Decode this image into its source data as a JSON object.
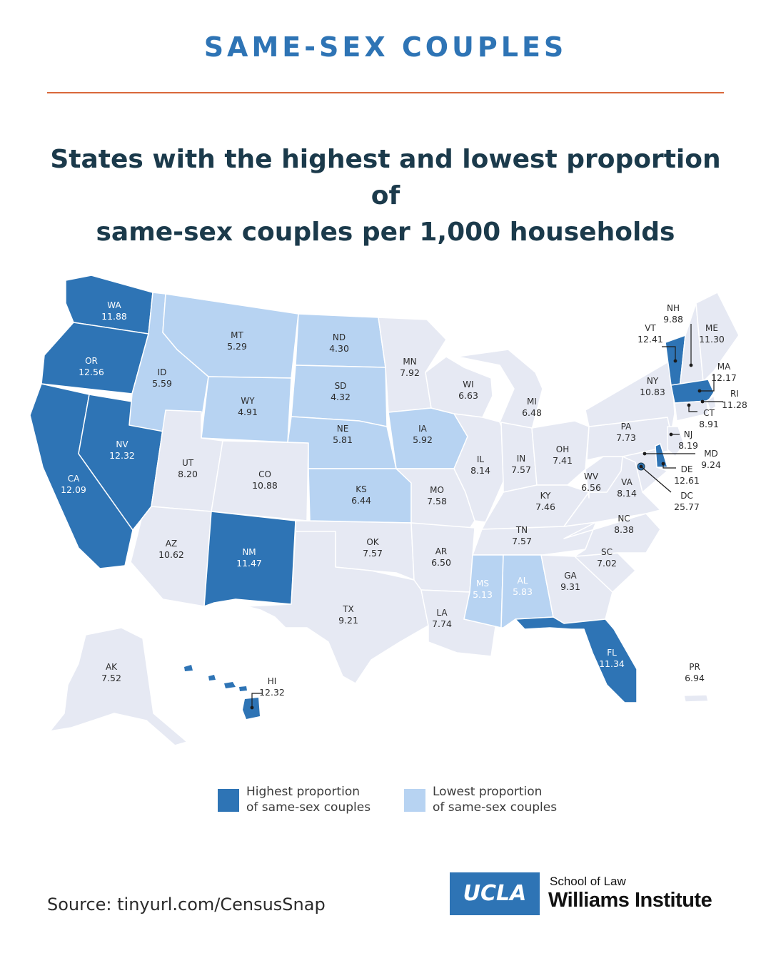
{
  "header": {
    "kicker": "SAME-SEX COUPLES",
    "title_line1": "States with the highest and lowest proportion of",
    "title_line2": "same-sex couples per 1,000 households"
  },
  "colors": {
    "high": "#2e74b5",
    "low": "#b7d3f2",
    "neutral": "#e6e9f3",
    "accent": "#d9683b",
    "label_dark": "#2b2b2b",
    "label_light": "#ffffff"
  },
  "states": [
    {
      "abbr": "WA",
      "value": "11.88",
      "cat": "high"
    },
    {
      "abbr": "OR",
      "value": "12.56",
      "cat": "high"
    },
    {
      "abbr": "CA",
      "value": "12.09",
      "cat": "high"
    },
    {
      "abbr": "NV",
      "value": "12.32",
      "cat": "high"
    },
    {
      "abbr": "ID",
      "value": "5.59",
      "cat": "low"
    },
    {
      "abbr": "MT",
      "value": "5.29",
      "cat": "low"
    },
    {
      "abbr": "WY",
      "value": "4.91",
      "cat": "low"
    },
    {
      "abbr": "UT",
      "value": "8.20",
      "cat": "neutral"
    },
    {
      "abbr": "AZ",
      "value": "10.62",
      "cat": "neutral"
    },
    {
      "abbr": "CO",
      "value": "10.88",
      "cat": "neutral"
    },
    {
      "abbr": "NM",
      "value": "11.47",
      "cat": "high"
    },
    {
      "abbr": "ND",
      "value": "4.30",
      "cat": "low"
    },
    {
      "abbr": "SD",
      "value": "4.32",
      "cat": "low"
    },
    {
      "abbr": "NE",
      "value": "5.81",
      "cat": "low"
    },
    {
      "abbr": "KS",
      "value": "6.44",
      "cat": "low"
    },
    {
      "abbr": "OK",
      "value": "7.57",
      "cat": "neutral"
    },
    {
      "abbr": "TX",
      "value": "9.21",
      "cat": "neutral"
    },
    {
      "abbr": "MN",
      "value": "7.92",
      "cat": "neutral"
    },
    {
      "abbr": "IA",
      "value": "5.92",
      "cat": "low"
    },
    {
      "abbr": "MO",
      "value": "7.58",
      "cat": "neutral"
    },
    {
      "abbr": "AR",
      "value": "6.50",
      "cat": "neutral"
    },
    {
      "abbr": "LA",
      "value": "7.74",
      "cat": "neutral"
    },
    {
      "abbr": "WI",
      "value": "6.63",
      "cat": "neutral"
    },
    {
      "abbr": "IL",
      "value": "8.14",
      "cat": "neutral"
    },
    {
      "abbr": "MI",
      "value": "6.48",
      "cat": "neutral"
    },
    {
      "abbr": "IN",
      "value": "7.57",
      "cat": "neutral"
    },
    {
      "abbr": "OH",
      "value": "7.41",
      "cat": "neutral"
    },
    {
      "abbr": "KY",
      "value": "7.46",
      "cat": "neutral"
    },
    {
      "abbr": "TN",
      "value": "7.57",
      "cat": "neutral"
    },
    {
      "abbr": "MS",
      "value": "5.13",
      "cat": "low"
    },
    {
      "abbr": "AL",
      "value": "5.83",
      "cat": "low"
    },
    {
      "abbr": "GA",
      "value": "9.31",
      "cat": "neutral"
    },
    {
      "abbr": "FL",
      "value": "11.34",
      "cat": "high"
    },
    {
      "abbr": "SC",
      "value": "7.02",
      "cat": "neutral"
    },
    {
      "abbr": "NC",
      "value": "8.38",
      "cat": "neutral"
    },
    {
      "abbr": "VA",
      "value": "8.14",
      "cat": "neutral"
    },
    {
      "abbr": "WV",
      "value": "6.56",
      "cat": "neutral"
    },
    {
      "abbr": "PA",
      "value": "7.73",
      "cat": "neutral"
    },
    {
      "abbr": "NY",
      "value": "10.83",
      "cat": "neutral"
    },
    {
      "abbr": "VT",
      "value": "12.41",
      "cat": "high"
    },
    {
      "abbr": "NH",
      "value": "9.88",
      "cat": "neutral"
    },
    {
      "abbr": "ME",
      "value": "11.30",
      "cat": "neutral"
    },
    {
      "abbr": "MA",
      "value": "12.17",
      "cat": "high"
    },
    {
      "abbr": "RI",
      "value": "11.28",
      "cat": "neutral"
    },
    {
      "abbr": "CT",
      "value": "8.91",
      "cat": "neutral"
    },
    {
      "abbr": "NJ",
      "value": "8.19",
      "cat": "neutral"
    },
    {
      "abbr": "MD",
      "value": "9.24",
      "cat": "neutral"
    },
    {
      "abbr": "DE",
      "value": "12.61",
      "cat": "high"
    },
    {
      "abbr": "DC",
      "value": "25.77",
      "cat": "high"
    },
    {
      "abbr": "AK",
      "value": "7.52",
      "cat": "neutral"
    },
    {
      "abbr": "HI",
      "value": "12.32",
      "cat": "high"
    },
    {
      "abbr": "PR",
      "value": "6.94",
      "cat": "neutral"
    }
  ],
  "legend": {
    "high_line1": "Highest proportion",
    "high_line2": "of same-sex couples",
    "low_line1": "Lowest proportion",
    "low_line2": "of same-sex couples"
  },
  "footer": {
    "source": "Source: tinyurl.com/CensusSnap",
    "logo_mark": "UCLA",
    "logo_line1": "School of Law",
    "logo_line2": "Williams Institute"
  }
}
